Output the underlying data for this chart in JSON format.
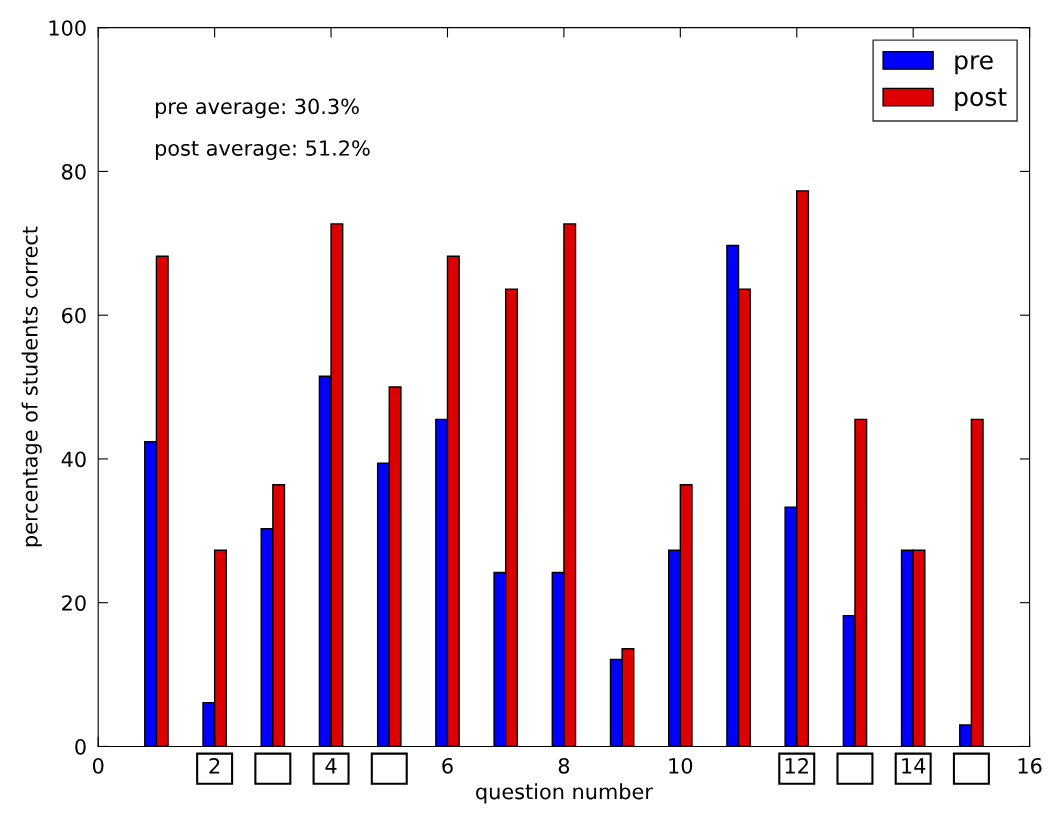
{
  "chart_data": {
    "type": "bar",
    "xlabel": "question number",
    "ylabel": "percentage of students correct",
    "x": [
      1,
      2,
      3,
      4,
      5,
      6,
      7,
      8,
      9,
      10,
      11,
      12,
      13,
      14,
      15
    ],
    "series": [
      {
        "name": "pre",
        "color": "#0000ff",
        "values": [
          42.4,
          6.1,
          30.3,
          51.5,
          39.4,
          45.5,
          24.2,
          24.2,
          12.1,
          27.3,
          69.7,
          33.3,
          18.2,
          27.3,
          3.0
        ]
      },
      {
        "name": "post",
        "color": "#dd0000",
        "values": [
          68.2,
          27.3,
          36.4,
          72.7,
          50.0,
          68.2,
          63.6,
          72.7,
          13.6,
          36.4,
          63.6,
          77.3,
          45.5,
          27.3,
          45.5
        ]
      }
    ],
    "xlim": [
      0,
      16
    ],
    "xticks": [
      0,
      2,
      4,
      6,
      8,
      10,
      12,
      14,
      16
    ],
    "ylim": [
      0,
      100
    ],
    "yticks": [
      0,
      20,
      40,
      60,
      80,
      100
    ],
    "annotations": [
      "pre average: 30.3%",
      "post average: 51.2%"
    ],
    "grid": false,
    "legend": "top right"
  }
}
